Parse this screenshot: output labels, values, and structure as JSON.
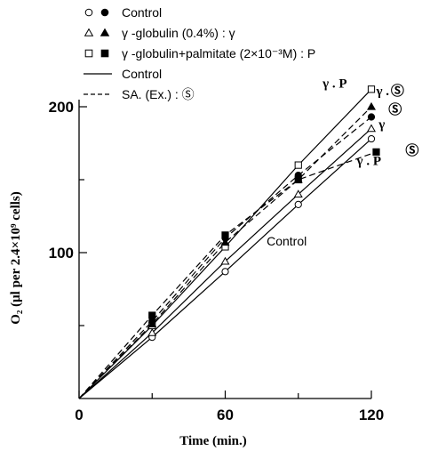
{
  "chart_data": {
    "type": "line",
    "title": "",
    "xlabel": "Time (min.)",
    "ylabel": "O₂ (μl per 2.4×10⁹ cells)",
    "xlim": [
      0,
      120
    ],
    "ylim": [
      0,
      210
    ],
    "xticks": [
      0,
      60,
      120
    ],
    "yticks": [
      100,
      200
    ],
    "grid": false,
    "legend_position": "top-left",
    "legend": [
      {
        "marker": "circle",
        "text": "Control"
      },
      {
        "marker": "triangle",
        "text": "γ -globulin (0.4%) : γ"
      },
      {
        "marker": "square",
        "text": "γ -globulin+palmitate (2×10⁻³M) : P"
      },
      {
        "line": "solid",
        "text": "Control"
      },
      {
        "line": "dashed",
        "text": "SA. (Ex.) : Ⓢ"
      }
    ],
    "series": [
      {
        "marker": "circle",
        "filled": false,
        "dash": false,
        "x": [
          0,
          30,
          60,
          90,
          120
        ],
        "y": [
          0,
          42,
          87,
          133,
          178
        ]
      },
      {
        "marker": "triangle",
        "filled": false,
        "dash": false,
        "x": [
          0,
          30,
          60,
          90,
          120
        ],
        "y": [
          0,
          45,
          94,
          140,
          185
        ]
      },
      {
        "marker": "square",
        "filled": false,
        "dash": false,
        "x": [
          0,
          30,
          60,
          90,
          120
        ],
        "y": [
          0,
          50,
          104,
          160,
          212
        ]
      },
      {
        "marker": "circle",
        "filled": true,
        "dash": true,
        "x": [
          0,
          30,
          60,
          90,
          120
        ],
        "y": [
          0,
          53,
          110,
          153,
          193
        ]
      },
      {
        "marker": "triangle",
        "filled": true,
        "dash": true,
        "x": [
          0,
          30,
          60,
          90,
          120
        ],
        "y": [
          0,
          51,
          107,
          150,
          200
        ]
      },
      {
        "marker": "square",
        "filled": true,
        "dash": true,
        "x": [
          0,
          30,
          60,
          90,
          122
        ],
        "y": [
          0,
          57,
          112,
          150,
          169
        ]
      }
    ],
    "annotations": [
      {
        "text": "γ . P",
        "x": 100,
        "y": 213
      },
      {
        "text": "γ .",
        "x": 122,
        "y": 208
      },
      {
        "text": "Ⓢ",
        "x": 128,
        "y": 208
      },
      {
        "text": "Ⓢ",
        "x": 127,
        "y": 195
      },
      {
        "text": "γ",
        "x": 123,
        "y": 185
      },
      {
        "text": "Ⓢ",
        "x": 134,
        "y": 167
      },
      {
        "text": "γ . P",
        "x": 114,
        "y": 160
      },
      {
        "text": "Control",
        "x": 77,
        "y": 105
      }
    ]
  }
}
